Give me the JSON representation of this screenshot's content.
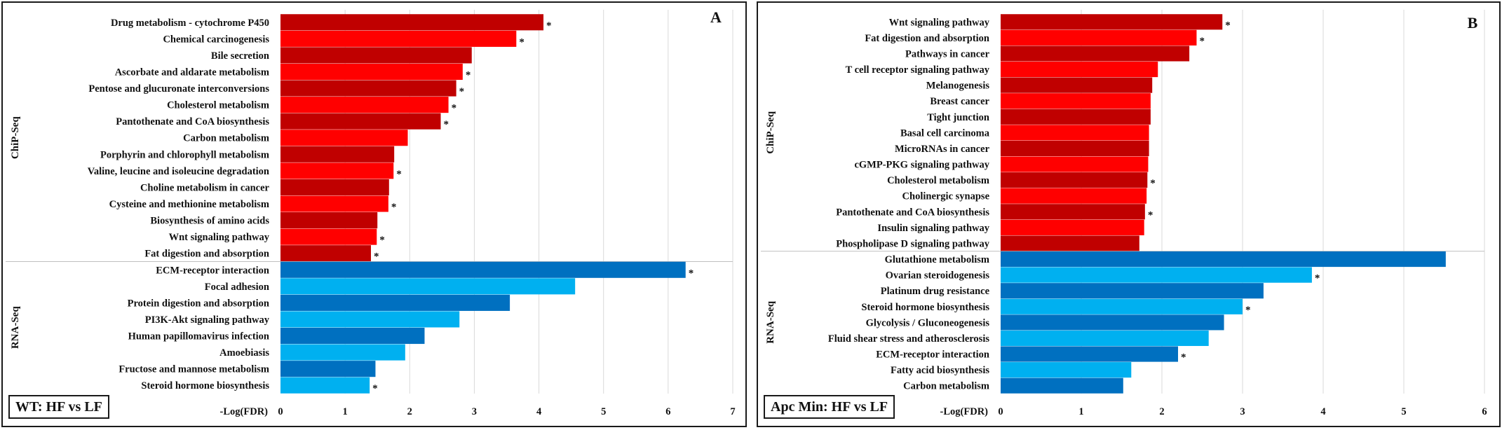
{
  "chart_data": [
    {
      "type": "bar",
      "orientation": "horizontal",
      "panel_label": "A",
      "legend_label": "WT: HF vs LF",
      "xlabel": "-Log(FDR)",
      "xlim": [
        0,
        7
      ],
      "xticks": [
        0,
        1,
        2,
        3,
        4,
        5,
        6,
        7
      ],
      "grid": "vertical",
      "significance_marker": "*",
      "colors": {
        "ChiP-Seq": [
          "#c00000",
          "#ff0000"
        ],
        "RNA-Seq": [
          "#0070c0",
          "#00b0f0"
        ]
      },
      "groups": [
        {
          "name": "ChiP-Seq",
          "items": [
            {
              "label": "Drug metabolism - cytochrome P450",
              "value": 4.07,
              "sig": true
            },
            {
              "label": "Chemical carcinogenesis",
              "value": 3.65,
              "sig": true
            },
            {
              "label": "Bile secretion",
              "value": 2.96,
              "sig": false
            },
            {
              "label": "Ascorbate and aldarate metabolism",
              "value": 2.82,
              "sig": true
            },
            {
              "label": "Pentose and glucuronate interconversions",
              "value": 2.72,
              "sig": true
            },
            {
              "label": "Cholesterol metabolism",
              "value": 2.6,
              "sig": true
            },
            {
              "label": "Pantothenate and CoA biosynthesis",
              "value": 2.48,
              "sig": true
            },
            {
              "label": "Carbon metabolism",
              "value": 1.97,
              "sig": false
            },
            {
              "label": "Porphyrin and chlorophyll metabolism",
              "value": 1.76,
              "sig": false
            },
            {
              "label": "Valine, leucine and isoleucine degradation",
              "value": 1.75,
              "sig": true
            },
            {
              "label": "Choline metabolism in cancer",
              "value": 1.68,
              "sig": false
            },
            {
              "label": "Cysteine and methionine metabolism",
              "value": 1.67,
              "sig": true
            },
            {
              "label": "Biosynthesis of amino acids",
              "value": 1.5,
              "sig": false
            },
            {
              "label": "Wnt signaling pathway",
              "value": 1.49,
              "sig": true
            },
            {
              "label": "Fat digestion and absorption",
              "value": 1.4,
              "sig": true
            }
          ]
        },
        {
          "name": "RNA-Seq",
          "items": [
            {
              "label": "ECM-receptor interaction",
              "value": 6.27,
              "sig": true
            },
            {
              "label": "Focal adhesion",
              "value": 4.56,
              "sig": false
            },
            {
              "label": "Protein digestion and absorption",
              "value": 3.55,
              "sig": false
            },
            {
              "label": "PI3K-Akt signaling pathway",
              "value": 2.77,
              "sig": false
            },
            {
              "label": "Human papillomavirus infection",
              "value": 2.23,
              "sig": false
            },
            {
              "label": "Amoebiasis",
              "value": 1.93,
              "sig": false
            },
            {
              "label": "Fructose and mannose metabolism",
              "value": 1.47,
              "sig": false
            },
            {
              "label": "Steroid hormone biosynthesis",
              "value": 1.38,
              "sig": true
            }
          ]
        }
      ]
    },
    {
      "type": "bar",
      "orientation": "horizontal",
      "panel_label": "B",
      "legend_label": "Apc Min: HF vs LF",
      "xlabel": "-Log(FDR)",
      "xlim": [
        0,
        6
      ],
      "xticks": [
        0,
        1,
        2,
        3,
        4,
        5,
        6
      ],
      "grid": "vertical",
      "significance_marker": "*",
      "colors": {
        "ChiP-Seq": [
          "#c00000",
          "#ff0000"
        ],
        "RNA-Seq": [
          "#0070c0",
          "#00b0f0"
        ]
      },
      "groups": [
        {
          "name": "ChiP-Seq",
          "items": [
            {
              "label": "Wnt signaling pathway",
              "value": 2.75,
              "sig": true
            },
            {
              "label": "Fat digestion and absorption",
              "value": 2.43,
              "sig": true
            },
            {
              "label": "Pathways in cancer",
              "value": 2.34,
              "sig": false
            },
            {
              "label": "T cell receptor signaling pathway",
              "value": 1.95,
              "sig": false
            },
            {
              "label": "Melanogenesis",
              "value": 1.88,
              "sig": false
            },
            {
              "label": "Breast cancer",
              "value": 1.86,
              "sig": false
            },
            {
              "label": "Tight junction",
              "value": 1.86,
              "sig": false
            },
            {
              "label": "Basal cell carcinoma",
              "value": 1.84,
              "sig": false
            },
            {
              "label": "MicroRNAs in cancer",
              "value": 1.84,
              "sig": false
            },
            {
              "label": "cGMP-PKG signaling pathway",
              "value": 1.83,
              "sig": false
            },
            {
              "label": "Cholesterol metabolism",
              "value": 1.82,
              "sig": true
            },
            {
              "label": "Cholinergic synapse",
              "value": 1.81,
              "sig": false
            },
            {
              "label": "Pantothenate and CoA biosynthesis",
              "value": 1.79,
              "sig": true
            },
            {
              "label": "Insulin signaling pathway",
              "value": 1.78,
              "sig": false
            },
            {
              "label": "Phospholipase D signaling pathway",
              "value": 1.72,
              "sig": false
            }
          ]
        },
        {
          "name": "RNA-Seq",
          "items": [
            {
              "label": "Glutathione metabolism",
              "value": 5.52,
              "sig": false
            },
            {
              "label": "Ovarian steroidogenesis",
              "value": 3.86,
              "sig": true
            },
            {
              "label": "Platinum drug resistance",
              "value": 3.26,
              "sig": false
            },
            {
              "label": "Steroid hormone biosynthesis",
              "value": 3.0,
              "sig": true
            },
            {
              "label": "Glycolysis / Gluconeogenesis",
              "value": 2.77,
              "sig": false
            },
            {
              "label": "Fluid shear stress and atherosclerosis",
              "value": 2.58,
              "sig": false
            },
            {
              "label": "ECM-receptor interaction",
              "value": 2.2,
              "sig": true
            },
            {
              "label": "Fatty acid biosynthesis",
              "value": 1.62,
              "sig": false
            },
            {
              "label": "Carbon metabolism",
              "value": 1.52,
              "sig": false
            }
          ]
        }
      ]
    }
  ]
}
